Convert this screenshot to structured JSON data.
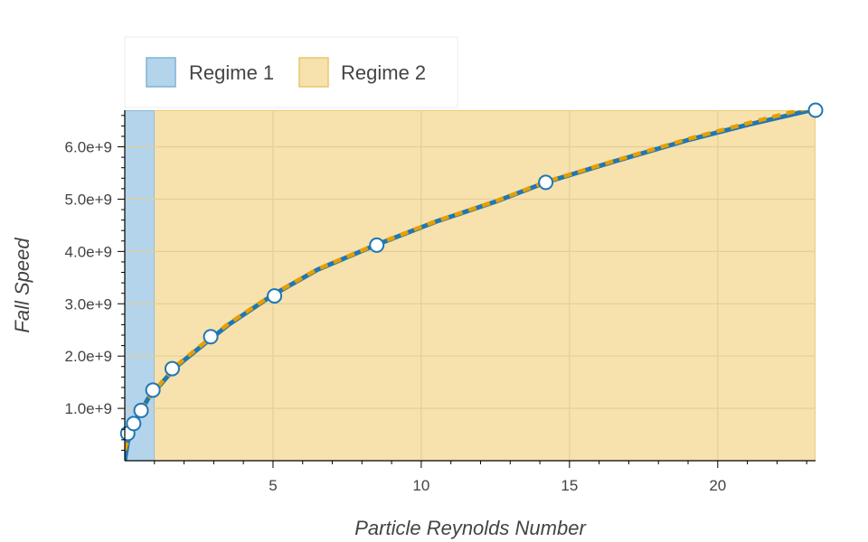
{
  "chart_data": {
    "type": "line",
    "title": "",
    "xlabel": "Particle Reynolds Number",
    "ylabel": "Fall Speed",
    "xlim": [
      0,
      23.3
    ],
    "ylim": [
      0,
      6700000000.0
    ],
    "grid": true,
    "legend_placement": "top-left",
    "x_ticks": [
      {
        "value": 5,
        "label": "5"
      },
      {
        "value": 10,
        "label": "10"
      },
      {
        "value": 15,
        "label": "15"
      },
      {
        "value": 20,
        "label": "20"
      }
    ],
    "y_ticks": [
      {
        "value": 1000000000.0,
        "label": "1.0e+9"
      },
      {
        "value": 2000000000.0,
        "label": "2.0e+9"
      },
      {
        "value": 3000000000.0,
        "label": "3.0e+9"
      },
      {
        "value": 4000000000.0,
        "label": "4.0e+9"
      },
      {
        "value": 5000000000.0,
        "label": "5.0e+9"
      },
      {
        "value": 6000000000.0,
        "label": "6.0e+9"
      }
    ],
    "regions": [
      {
        "name": "Regime 1",
        "x_start": 0,
        "x_end": 1,
        "color": "#b3d4ea",
        "edge_color": "#7fb3d5"
      },
      {
        "name": "Regime 2",
        "x_start": 1,
        "x_end": 23.3,
        "color": "#f7e1ad",
        "edge_color": "#e8c76a"
      }
    ],
    "series": [
      {
        "style": "solid",
        "color": "#1f77b4",
        "x": [
          0,
          0.1,
          0.2,
          0.35,
          0.55,
          0.8,
          1.2,
          1.7,
          2.5,
          3.5,
          5,
          6.5,
          8.5,
          10.5,
          12.5,
          14.2,
          16.5,
          19,
          21,
          23.3
        ],
        "y": [
          0,
          350000000.0,
          550000000.0,
          750000000.0,
          950000000.0,
          1200000000.0,
          1450000000.0,
          1780000000.0,
          2150000000.0,
          2600000000.0,
          3170000000.0,
          3650000000.0,
          4130000000.0,
          4570000000.0,
          4950000000.0,
          5320000000.0,
          5720000000.0,
          6130000000.0,
          6420000000.0,
          6720000000.0
        ]
      },
      {
        "style": "dashed",
        "color": "#e69f00",
        "x": [
          0,
          0.1,
          0.2,
          0.35,
          0.55,
          0.8,
          1.2,
          1.7,
          2.5,
          3.5,
          5,
          6.5,
          8.5,
          10.5,
          12.5,
          14.2,
          16.5,
          19,
          21,
          23.3
        ],
        "y": [
          200000000.0,
          400000000.0,
          570000000.0,
          760000000.0,
          960000000.0,
          1200000000.0,
          1470000000.0,
          1800000000.0,
          2170000000.0,
          2620000000.0,
          3180000000.0,
          3660000000.0,
          4140000000.0,
          4580000000.0,
          4960000000.0,
          5330000000.0,
          5730000000.0,
          6150000000.0,
          6450000000.0,
          6780000000.0
        ]
      }
    ],
    "markers": {
      "x": [
        0.1,
        0.3,
        0.55,
        0.95,
        1.6,
        2.9,
        5.05,
        8.5,
        14.2,
        23.3
      ],
      "y": [
        520000000.0,
        710000000.0,
        960000000.0,
        1350000000.0,
        1760000000.0,
        2370000000.0,
        3150000000.0,
        4120000000.0,
        5320000000.0,
        6700000000.0
      ]
    }
  }
}
